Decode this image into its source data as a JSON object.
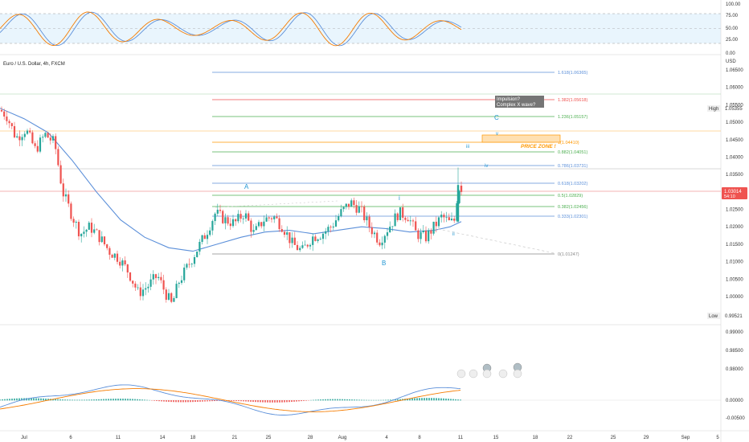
{
  "chart_title": "Euro / U.S. Dollar, 4h, FXCM",
  "currency": "USD",
  "colors": {
    "up": "#26a69a",
    "down": "#ef5350",
    "ma": "#5b8fd9",
    "bg": "#ffffff",
    "rsi_fast": "#f57c00",
    "rsi_slow": "#5b8fd9",
    "wave": "#2196d3"
  },
  "x_labels": [
    "Jul",
    "6",
    "11",
    "14",
    "18",
    "21",
    "25",
    "28",
    "Aug",
    "4",
    "8",
    "11",
    "15",
    "18",
    "22",
    "25",
    "29",
    "Sep",
    "5"
  ],
  "rsi_panel": {
    "ticks": [
      "100.00",
      "75.00",
      "50.00",
      "25.00",
      "0.00"
    ]
  },
  "price_ticks": [
    "1.06500",
    "1.06000",
    "1.05500",
    "1.05000",
    "1.04500",
    "1.04000",
    "1.03500",
    "1.03000",
    "1.02500",
    "1.02000",
    "1.01500",
    "1.01000",
    "1.00500",
    "1.00000"
  ],
  "osc_ticks": [
    "0.99000",
    "0.98500",
    "0.98000"
  ],
  "macd_ticks": [
    "0.00000",
    "-0.00500"
  ],
  "high_label": "High",
  "high_value": "1.05355",
  "low_label": "Low",
  "low_value": "0.99521",
  "last_price": "1.03014",
  "countdown": "54:10",
  "fib_levels": [
    {
      "label": "1.618(1.06365)",
      "color": "#5b8fd9"
    },
    {
      "label": "1.382(1.05618)",
      "color": "#ef5350"
    },
    {
      "label": "1.236(1.05157)",
      "color": "#4caf50"
    },
    {
      "label": "1(1.04410)",
      "color": "#ff9800"
    },
    {
      "label": "0.882(1.04051)",
      "color": "#4caf50"
    },
    {
      "label": "0.786(1.03731)",
      "color": "#5b8fd9"
    },
    {
      "label": "0.618(1.03202)",
      "color": "#5b8fd9"
    },
    {
      "label": "0.5(1.02829)",
      "color": "#4caf50"
    },
    {
      "label": "0.382(1.02456)",
      "color": "#4caf50"
    },
    {
      "label": "0.333(1.02301)",
      "color": "#5b8fd9"
    },
    {
      "label": "0(1.01247)",
      "color": "#888888"
    }
  ],
  "annotations": {
    "impulsion": "Impulsion?",
    "complex": "Complex X wave?",
    "price_zone": "PRICE ZONE !"
  },
  "waves": {
    "A": "A",
    "B": "B",
    "C": "C",
    "i": "i",
    "ii": "ii",
    "iii": "iii",
    "iv": "iv",
    "v": "v"
  },
  "chart_data": {
    "type": "candlestick",
    "title": "Euro / U.S. Dollar, 4h, FXCM",
    "x_range": [
      "Jul",
      "Sep 5"
    ],
    "ylim": [
      0.99,
      1.068
    ],
    "series_ohlc_approx": [
      [
        1.054,
        1.0545,
        1.044,
        1.046
      ],
      [
        1.046,
        1.05,
        1.042,
        1.048
      ],
      [
        1.048,
        1.049,
        1.042,
        1.043
      ],
      [
        1.043,
        1.047,
        1.038,
        1.044
      ],
      [
        1.044,
        1.0445,
        1.029,
        1.03
      ],
      [
        1.03,
        1.031,
        1.02,
        1.022
      ],
      [
        1.022,
        1.024,
        1.017,
        1.018
      ],
      [
        1.018,
        1.019,
        1.013,
        1.015
      ],
      [
        1.015,
        1.016,
        1.005,
        1.007
      ],
      [
        1.007,
        1.008,
        1.0,
        1.001
      ],
      [
        1.001,
        1.006,
        0.999,
        1.005
      ],
      [
        1.005,
        1.006,
        0.9952,
        0.998
      ],
      [
        0.998,
        1.01,
        0.997,
        1.009
      ],
      [
        1.009,
        1.02,
        1.008,
        1.019
      ],
      [
        1.019,
        1.026,
        1.015,
        1.023
      ],
      [
        1.023,
        1.027,
        1.018,
        1.02
      ],
      [
        1.02,
        1.025,
        1.013,
        1.017
      ],
      [
        1.017,
        1.024,
        1.015,
        1.021
      ],
      [
        1.021,
        1.026,
        1.01,
        1.012
      ],
      [
        1.012,
        1.018,
        1.01,
        1.016
      ],
      [
        1.016,
        1.023,
        1.014,
        1.021
      ],
      [
        1.021,
        1.027,
        1.019,
        1.026
      ],
      [
        1.026,
        1.029,
        1.02,
        1.022
      ],
      [
        1.022,
        1.024,
        1.013,
        1.015
      ],
      [
        1.015,
        1.02,
        1.012,
        1.018
      ],
      [
        1.018,
        1.021,
        1.014,
        1.02
      ],
      [
        1.02,
        1.024,
        1.016,
        1.019
      ],
      [
        1.019,
        1.026,
        1.018,
        1.025
      ],
      [
        1.025,
        1.039,
        1.024,
        1.038
      ],
      [
        1.038,
        1.0368,
        1.029,
        1.03
      ]
    ]
  }
}
